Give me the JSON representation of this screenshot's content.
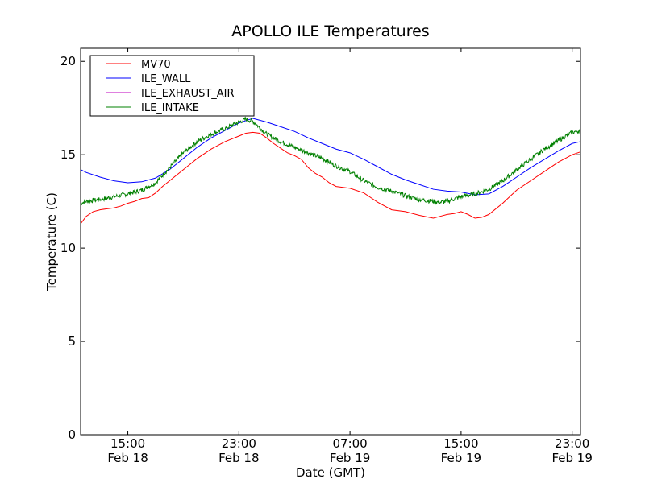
{
  "chart_data": {
    "type": "line",
    "title": "APOLLO ILE Temperatures",
    "xlabel": "Date (GMT)",
    "ylabel": "Temperature (C)",
    "ylim": [
      0,
      20.7
    ],
    "xlim_hours": [
      11.6,
      47.6
    ],
    "grid": false,
    "legend_position": "top-left",
    "yticks": [
      {
        "value": 0,
        "label": "0"
      },
      {
        "value": 5,
        "label": "5"
      },
      {
        "value": 10,
        "label": "10"
      },
      {
        "value": 15,
        "label": "15"
      },
      {
        "value": 20,
        "label": "20"
      }
    ],
    "xticks": [
      {
        "hour": 15,
        "time": "15:00",
        "date": "Feb 18"
      },
      {
        "hour": 23,
        "time": "23:00",
        "date": "Feb 18"
      },
      {
        "hour": 31,
        "time": "07:00",
        "date": "Feb 19"
      },
      {
        "hour": 39,
        "time": "15:00",
        "date": "Feb 19"
      },
      {
        "hour": 47,
        "time": "23:00",
        "date": "Feb 19"
      }
    ],
    "series": [
      {
        "name": "MV70",
        "color": "#ff0000",
        "noise": 0,
        "x": [
          11.6,
          12.0,
          12.5,
          13.0,
          13.5,
          14.0,
          14.5,
          15.0,
          15.5,
          16.0,
          16.5,
          17.0,
          17.5,
          18.0,
          19.0,
          20.0,
          21.0,
          22.0,
          23.0,
          23.5,
          24.0,
          24.5,
          25.0,
          25.5,
          26.0,
          26.5,
          27.0,
          27.5,
          28.0,
          28.5,
          29.0,
          29.5,
          30.0,
          30.5,
          31.0,
          32.0,
          32.5,
          33.0,
          34.0,
          35.0,
          36.0,
          37.0,
          37.5,
          38.0,
          38.5,
          39.0,
          39.5,
          40.0,
          40.5,
          41.0,
          42.0,
          43.0,
          44.0,
          45.0,
          46.0,
          47.0,
          47.6
        ],
        "y": [
          11.3,
          11.7,
          11.95,
          12.05,
          12.1,
          12.15,
          12.25,
          12.4,
          12.5,
          12.65,
          12.7,
          12.95,
          13.3,
          13.6,
          14.2,
          14.8,
          15.3,
          15.7,
          16.0,
          16.15,
          16.2,
          16.15,
          15.9,
          15.6,
          15.35,
          15.1,
          14.95,
          14.75,
          14.3,
          14.0,
          13.8,
          13.5,
          13.3,
          13.25,
          13.2,
          12.95,
          12.7,
          12.45,
          12.05,
          11.95,
          11.75,
          11.6,
          11.7,
          11.8,
          11.85,
          11.95,
          11.8,
          11.6,
          11.65,
          11.8,
          12.4,
          13.1,
          13.6,
          14.1,
          14.6,
          15.0,
          15.15
        ]
      },
      {
        "name": "ILE_WALL",
        "color": "#0000ff",
        "noise": 0,
        "x": [
          11.6,
          12.0,
          13.0,
          14.0,
          15.0,
          16.0,
          17.0,
          18.0,
          19.0,
          20.0,
          21.0,
          22.0,
          23.0,
          24.0,
          25.0,
          26.0,
          27.0,
          28.0,
          29.0,
          30.0,
          31.0,
          32.0,
          33.0,
          34.0,
          35.0,
          36.0,
          37.0,
          38.0,
          39.0,
          40.0,
          41.0,
          42.0,
          43.0,
          44.0,
          45.0,
          46.0,
          47.0,
          47.6
        ],
        "y": [
          14.2,
          14.05,
          13.8,
          13.6,
          13.5,
          13.55,
          13.75,
          14.2,
          14.8,
          15.4,
          15.9,
          16.3,
          16.7,
          16.95,
          16.75,
          16.5,
          16.25,
          15.9,
          15.6,
          15.3,
          15.1,
          14.75,
          14.35,
          13.95,
          13.65,
          13.4,
          13.15,
          13.05,
          13.0,
          12.85,
          12.9,
          13.3,
          13.8,
          14.3,
          14.75,
          15.2,
          15.6,
          15.7
        ]
      },
      {
        "name": "ILE_EXHAUST_AIR",
        "color": "#bf00bf",
        "noise": 0,
        "x": [],
        "y": []
      },
      {
        "name": "ILE_INTAKE",
        "color": "#008000",
        "noise": 0.12,
        "x": [
          11.6,
          12.0,
          13.0,
          14.0,
          15.0,
          16.0,
          17.0,
          18.0,
          19.0,
          20.0,
          21.0,
          22.0,
          23.0,
          23.5,
          24.0,
          25.0,
          26.0,
          27.0,
          28.0,
          29.0,
          30.0,
          31.0,
          32.0,
          33.0,
          34.0,
          35.0,
          36.0,
          37.0,
          37.5,
          38.0,
          39.0,
          40.0,
          41.0,
          42.0,
          43.0,
          44.0,
          45.0,
          46.0,
          47.0,
          47.6
        ],
        "y": [
          12.4,
          12.5,
          12.6,
          12.75,
          12.9,
          13.1,
          13.5,
          14.3,
          15.1,
          15.7,
          16.1,
          16.4,
          16.75,
          16.9,
          16.8,
          16.1,
          15.7,
          15.4,
          15.1,
          14.8,
          14.4,
          14.1,
          13.6,
          13.25,
          13.05,
          12.8,
          12.6,
          12.5,
          12.45,
          12.5,
          12.75,
          12.9,
          13.15,
          13.6,
          14.2,
          14.75,
          15.3,
          15.75,
          16.2,
          16.3
        ]
      }
    ]
  }
}
